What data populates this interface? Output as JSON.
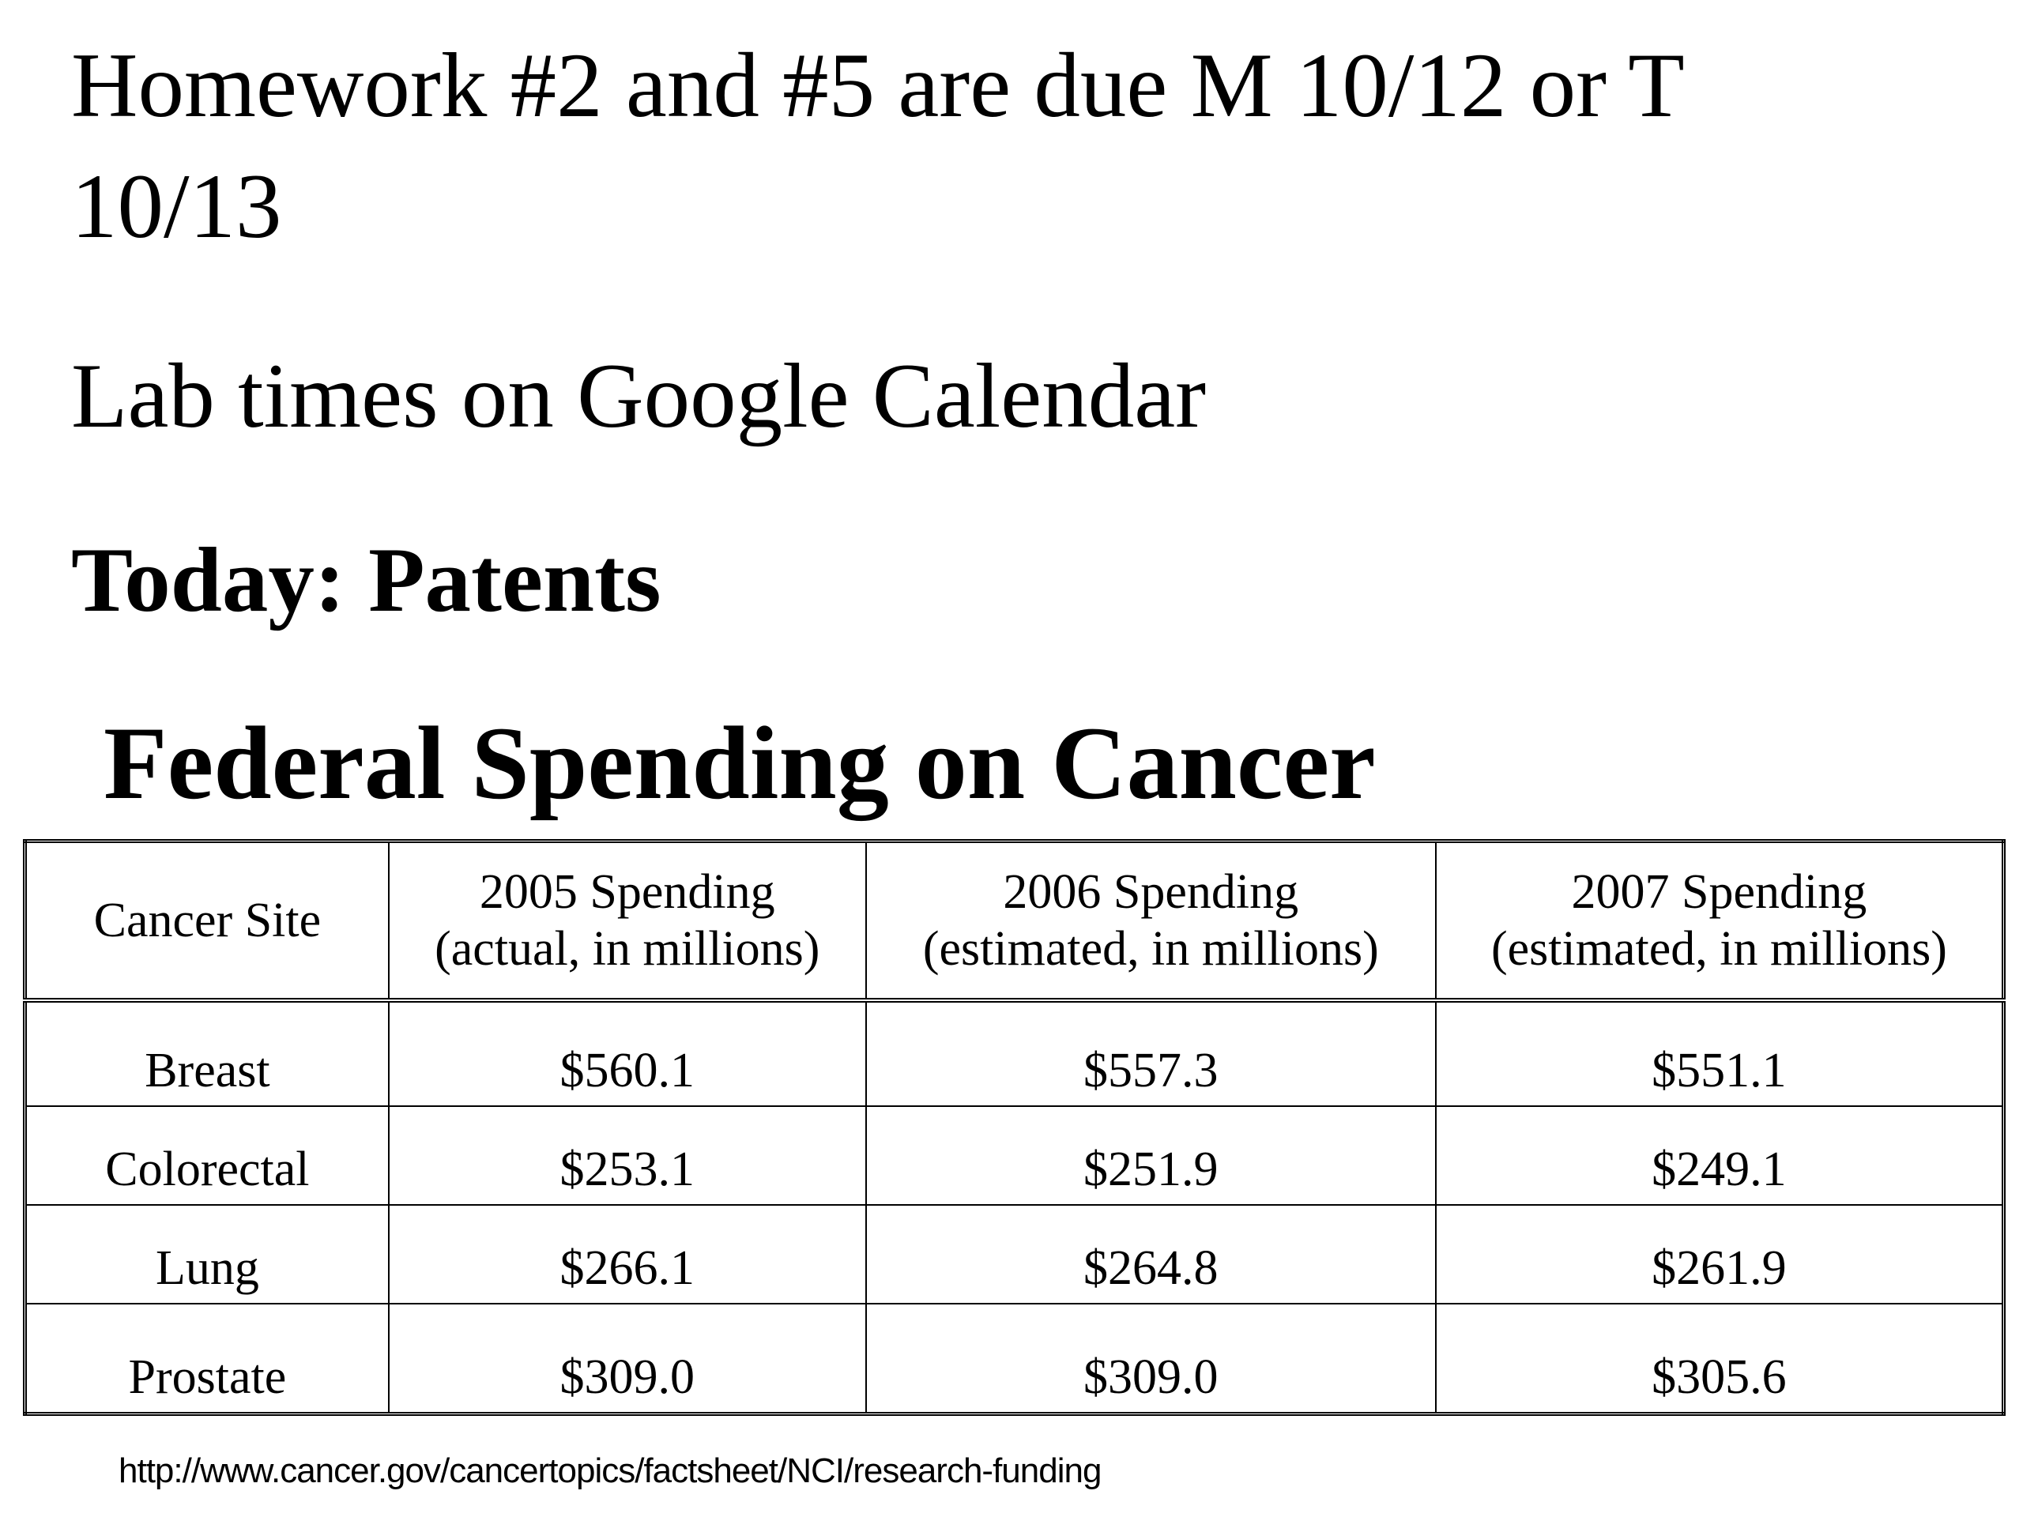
{
  "notes": {
    "homework_line1": "Homework #2 and #5 are due M 10/12 or T",
    "homework_line2": "10/13",
    "lab_times": "Lab times on Google Calendar",
    "today": "Today:  Patents"
  },
  "table": {
    "title": "Federal Spending on Cancer",
    "headers": [
      {
        "line1": "Cancer Site",
        "line2": ""
      },
      {
        "line1": "2005 Spending",
        "line2": "(actual, in millions)"
      },
      {
        "line1": "2006 Spending",
        "line2": "(estimated, in millions)"
      },
      {
        "line1": "2007 Spending",
        "line2": "(estimated, in millions)"
      }
    ],
    "rows": [
      [
        "Breast",
        "$560.1",
        "$557.3",
        "$551.1"
      ],
      [
        "Colorectal",
        "$253.1",
        "$251.9",
        "$249.1"
      ],
      [
        "Lung",
        "$266.1",
        "$264.8",
        "$261.9"
      ],
      [
        "Prostate",
        "$309.0",
        "$309.0",
        "$305.6"
      ]
    ],
    "source": "http://www.cancer.gov/cancertopics/factsheet/NCI/research-funding"
  }
}
